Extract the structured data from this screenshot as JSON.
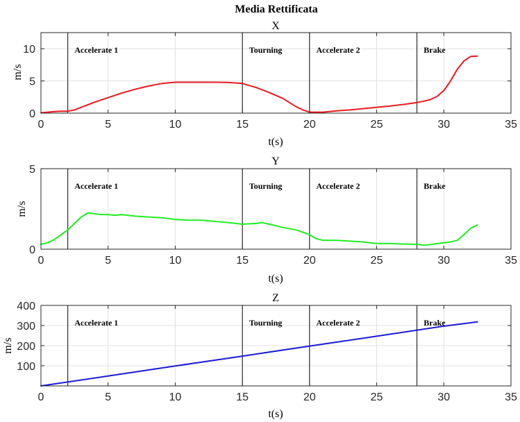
{
  "figure_title": "Media Rettificata",
  "chart_data": [
    {
      "type": "line",
      "title": "X",
      "xlabel": "t(s)",
      "ylabel": "m/s",
      "xlim": [
        0,
        35
      ],
      "ylim": [
        0,
        12.5
      ],
      "xticks": [
        0,
        5,
        10,
        15,
        20,
        25,
        30,
        35
      ],
      "yticks": [
        0,
        5,
        10
      ],
      "grid": true,
      "line_color": "#e8191f",
      "phase_lines": [
        2,
        15,
        20,
        28
      ],
      "phase_labels": [
        {
          "text": "Accelerate 1",
          "x": 2.5
        },
        {
          "text": "Tourning",
          "x": 15.5
        },
        {
          "text": "Accelerate 2",
          "x": 20.5
        },
        {
          "text": "Brake",
          "x": 28.5
        }
      ],
      "series": [
        {
          "x": [
            0,
            0.5,
            1,
            1.5,
            2,
            2.5,
            3,
            3.5,
            4,
            5,
            6,
            7,
            8,
            9,
            10,
            11,
            12,
            13,
            14,
            15,
            16,
            17,
            18,
            19,
            19.5,
            20,
            21,
            22,
            23,
            24,
            25,
            26,
            27,
            28,
            28.5,
            29,
            29.5,
            30,
            30.5,
            31,
            31.5,
            32,
            32.5
          ],
          "y": [
            0.05,
            0.15,
            0.25,
            0.3,
            0.3,
            0.5,
            0.9,
            1.3,
            1.7,
            2.4,
            3.1,
            3.7,
            4.2,
            4.6,
            4.8,
            4.8,
            4.8,
            4.8,
            4.75,
            4.6,
            4.0,
            3.2,
            2.3,
            1.0,
            0.5,
            0.15,
            0.15,
            0.35,
            0.5,
            0.7,
            0.9,
            1.1,
            1.35,
            1.65,
            1.85,
            2.1,
            2.6,
            3.5,
            5.0,
            6.8,
            8.1,
            8.8,
            8.85
          ]
        }
      ]
    },
    {
      "type": "line",
      "title": "Y",
      "xlabel": "t(s)",
      "ylabel": "m/s",
      "xlim": [
        0,
        35
      ],
      "ylim": [
        0,
        5
      ],
      "xticks": [
        0,
        5,
        10,
        15,
        20,
        25,
        30,
        35
      ],
      "yticks": [
        0,
        5
      ],
      "grid": true,
      "line_color": "#1fee1f",
      "phase_lines": [
        2,
        15,
        20,
        28
      ],
      "phase_labels": [
        {
          "text": "Accelerate 1",
          "x": 2.5
        },
        {
          "text": "Tourning",
          "x": 15.5
        },
        {
          "text": "Accelerate 2",
          "x": 20.5
        },
        {
          "text": "Brake",
          "x": 28.5
        }
      ],
      "series": [
        {
          "x": [
            0,
            0.5,
            1,
            1.5,
            2,
            2.5,
            3,
            3.5,
            4,
            4.5,
            5,
            5.5,
            6,
            7,
            8,
            9,
            10,
            11,
            12,
            13,
            14,
            15,
            16,
            16.5,
            17,
            18,
            19,
            20,
            20.5,
            21,
            22,
            23,
            24,
            25,
            26,
            27,
            28,
            28.5,
            29,
            30,
            30.5,
            31,
            31.5,
            32,
            32.5
          ],
          "y": [
            0.3,
            0.4,
            0.6,
            0.9,
            1.2,
            1.6,
            2.0,
            2.25,
            2.2,
            2.15,
            2.15,
            2.1,
            2.15,
            2.05,
            2.0,
            1.95,
            1.85,
            1.8,
            1.8,
            1.72,
            1.65,
            1.55,
            1.6,
            1.65,
            1.55,
            1.35,
            1.2,
            0.9,
            0.65,
            0.55,
            0.55,
            0.5,
            0.45,
            0.35,
            0.35,
            0.32,
            0.3,
            0.25,
            0.28,
            0.4,
            0.45,
            0.55,
            0.9,
            1.3,
            1.5
          ]
        }
      ]
    },
    {
      "type": "line",
      "title": "Z",
      "xlabel": "t(s)",
      "ylabel": "m/s",
      "xlim": [
        0,
        35
      ],
      "ylim": [
        0,
        400
      ],
      "xticks": [
        0,
        5,
        10,
        15,
        20,
        25,
        30,
        35
      ],
      "yticks": [
        100,
        200,
        300,
        400
      ],
      "grid": true,
      "line_color": "#1a1ad6",
      "phase_lines": [
        2,
        15,
        20,
        28
      ],
      "phase_labels": [
        {
          "text": "Accelerate 1",
          "x": 2.5
        },
        {
          "text": "Tourning",
          "x": 15.5
        },
        {
          "text": "Accelerate 2",
          "x": 20.5
        },
        {
          "text": "Brake",
          "x": 28.5
        }
      ],
      "series": [
        {
          "x": [
            0,
            5,
            10,
            15,
            20,
            25,
            30,
            32.5
          ],
          "y": [
            0,
            49,
            99,
            148,
            198,
            247,
            297,
            318
          ]
        }
      ]
    }
  ]
}
